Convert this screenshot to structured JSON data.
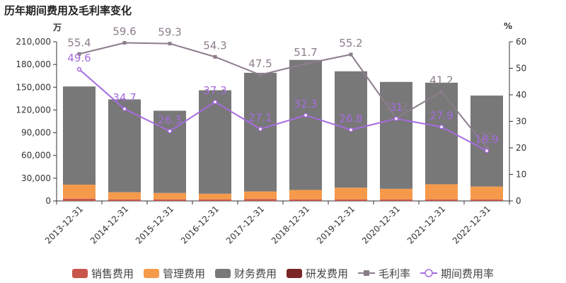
{
  "chart_data": {
    "title": "历年期间费用及毛利率变化",
    "type": "bar",
    "stacked": true,
    "categories": [
      "2013-12-31",
      "2014-12-31",
      "2015-12-31",
      "2016-12-31",
      "2017-12-31",
      "2018-12-31",
      "2019-12-31",
      "2020-12-31",
      "2021-12-31",
      "2022-12-31"
    ],
    "y_left": {
      "unit": "万",
      "ylim": [
        0,
        210000
      ],
      "ticks": [
        "0",
        "30,000",
        "60,000",
        "90,000",
        "120,000",
        "150,000",
        "180,000",
        "210,000"
      ]
    },
    "y_right": {
      "unit": "%",
      "ylim": [
        0,
        60
      ],
      "ticks": [
        "0",
        "10",
        "20",
        "30",
        "40",
        "50",
        "60"
      ]
    },
    "series": [
      {
        "name": "销售费用",
        "kind": "bar",
        "color": "#c9564c",
        "values": [
          3000,
          2000,
          2000,
          2000,
          2500,
          2000,
          2000,
          2000,
          2000,
          2000
        ]
      },
      {
        "name": "管理费用",
        "kind": "bar",
        "color": "#f59a4a",
        "values": [
          18500,
          9500,
          8500,
          7500,
          10000,
          12500,
          15500,
          14000,
          20000,
          17000
        ]
      },
      {
        "name": "财务费用",
        "kind": "bar",
        "color": "#787878",
        "values": [
          129500,
          122500,
          108500,
          136500,
          156500,
          171500,
          153500,
          141000,
          134000,
          120000
        ]
      },
      {
        "name": "研发费用",
        "kind": "bar",
        "color": "#7b2526",
        "values": [
          0,
          0,
          0,
          0,
          0,
          0,
          0,
          0,
          0,
          0
        ]
      },
      {
        "name": "毛利率",
        "kind": "line",
        "axis": "right",
        "color": "#8b7d8b",
        "values": [
          55.4,
          59.6,
          59.3,
          54.3,
          47.5,
          51.7,
          55.2,
          31.2,
          41.2,
          20.0
        ],
        "labels": [
          "55.4",
          "59.6",
          "59.3",
          "54.3",
          "47.5",
          "51.7",
          "55.2",
          "31.2",
          "41.2",
          "20"
        ]
      },
      {
        "name": "期间费用率",
        "kind": "line",
        "axis": "right",
        "color": "#a66be0",
        "values": [
          49.6,
          34.7,
          26.3,
          37.3,
          27.1,
          32.3,
          26.8,
          31.0,
          27.9,
          18.9
        ],
        "labels": [
          "49.6",
          "34.7",
          "26.3",
          "37.3",
          "27.1",
          "32.3",
          "26.8",
          "31",
          "27.9",
          "18.9"
        ]
      }
    ],
    "grid": false,
    "legend_position": "bottom"
  }
}
